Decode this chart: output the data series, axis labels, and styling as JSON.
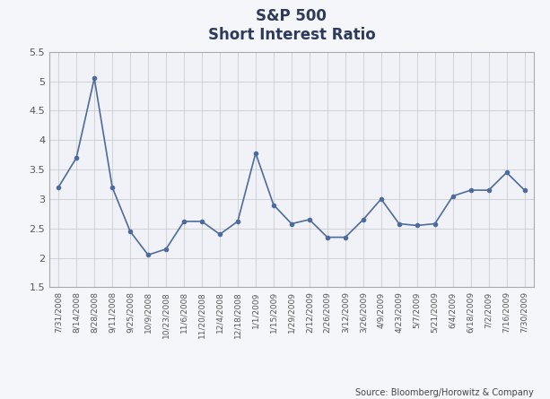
{
  "title_line1": "S&P 500",
  "title_line2": "Short Interest Ratio",
  "source_text": "Source: Bloomberg/Horowitz & Company",
  "ylim": [
    1.5,
    5.5
  ],
  "yticks": [
    1.5,
    2.0,
    2.5,
    3.0,
    3.5,
    4.0,
    4.5,
    5.0,
    5.5
  ],
  "line_color": "#4E6B9B",
  "plot_bg_color": "#F0F2F8",
  "fig_bg_color": "#F5F6FA",
  "dates": [
    "7/31/2008",
    "8/14/2008",
    "8/28/2008",
    "9/11/2008",
    "9/25/2008",
    "10/9/2008",
    "10/23/2008",
    "11/6/2008",
    "11/20/2008",
    "12/4/2008",
    "12/18/2008",
    "1/1/2009",
    "1/15/2009",
    "1/29/2009",
    "2/12/2009",
    "2/26/2009",
    "3/12/2009",
    "3/26/2009",
    "4/9/2009",
    "4/23/2009",
    "5/7/2009",
    "5/21/2009",
    "6/4/2009",
    "6/18/2009",
    "7/2/2009",
    "7/16/2009",
    "7/30/2009"
  ],
  "values": [
    3.2,
    3.7,
    5.05,
    3.2,
    2.45,
    2.05,
    2.15,
    2.62,
    2.62,
    2.4,
    2.62,
    3.78,
    2.9,
    2.58,
    2.65,
    2.35,
    2.35,
    2.65,
    3.0,
    2.58,
    2.55,
    2.58,
    3.05,
    3.15,
    3.15,
    3.45,
    3.15
  ],
  "ytick_labels": [
    "1.5",
    "2",
    "2.5",
    "3",
    "3.5",
    "4",
    "4.5",
    "5",
    "5.5"
  ],
  "marker_size": 3.0,
  "line_width": 1.2,
  "title_color": "#2E3A59",
  "tick_color": "#555555",
  "grid_color": "#CCCCCC",
  "spine_color": "#AAAAAA",
  "source_color": "#444444"
}
